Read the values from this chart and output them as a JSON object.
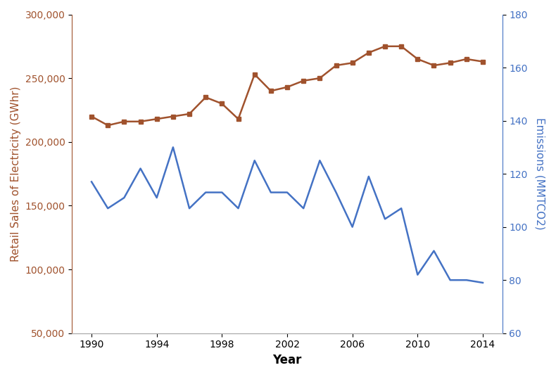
{
  "years": [
    1990,
    1991,
    1992,
    1993,
    1994,
    1995,
    1996,
    1997,
    1998,
    1999,
    2000,
    2001,
    2002,
    2003,
    2004,
    2005,
    2006,
    2007,
    2008,
    2009,
    2010,
    2011,
    2012,
    2013,
    2014
  ],
  "retail_electricity": [
    220000,
    213000,
    216000,
    216000,
    218000,
    220000,
    222000,
    235000,
    230000,
    218000,
    253000,
    240000,
    243000,
    248000,
    250000,
    260000,
    262000,
    270000,
    275000,
    275000,
    265000,
    260000,
    262000,
    265000,
    263000
  ],
  "emissions": [
    117,
    107,
    111,
    122,
    111,
    130,
    107,
    113,
    113,
    107,
    125,
    113,
    113,
    107,
    125,
    113,
    100,
    119,
    103,
    107,
    82,
    91,
    80,
    80,
    79
  ],
  "line1_color": "#a0522d",
  "line2_color": "#4472c4",
  "ylabel_left": "Retail Sales of Electricity (GWhr)",
  "ylabel_right": "Emissions (MMTCO2)",
  "xlabel": "Year",
  "ylim_left": [
    50000,
    300000
  ],
  "ylim_right": [
    60,
    180
  ],
  "yticks_left": [
    50000,
    100000,
    150000,
    200000,
    250000,
    300000
  ],
  "yticks_right": [
    60,
    80,
    100,
    120,
    140,
    160,
    180
  ],
  "xticks": [
    1990,
    1994,
    1998,
    2002,
    2006,
    2010,
    2014
  ],
  "background_color": "#ffffff"
}
